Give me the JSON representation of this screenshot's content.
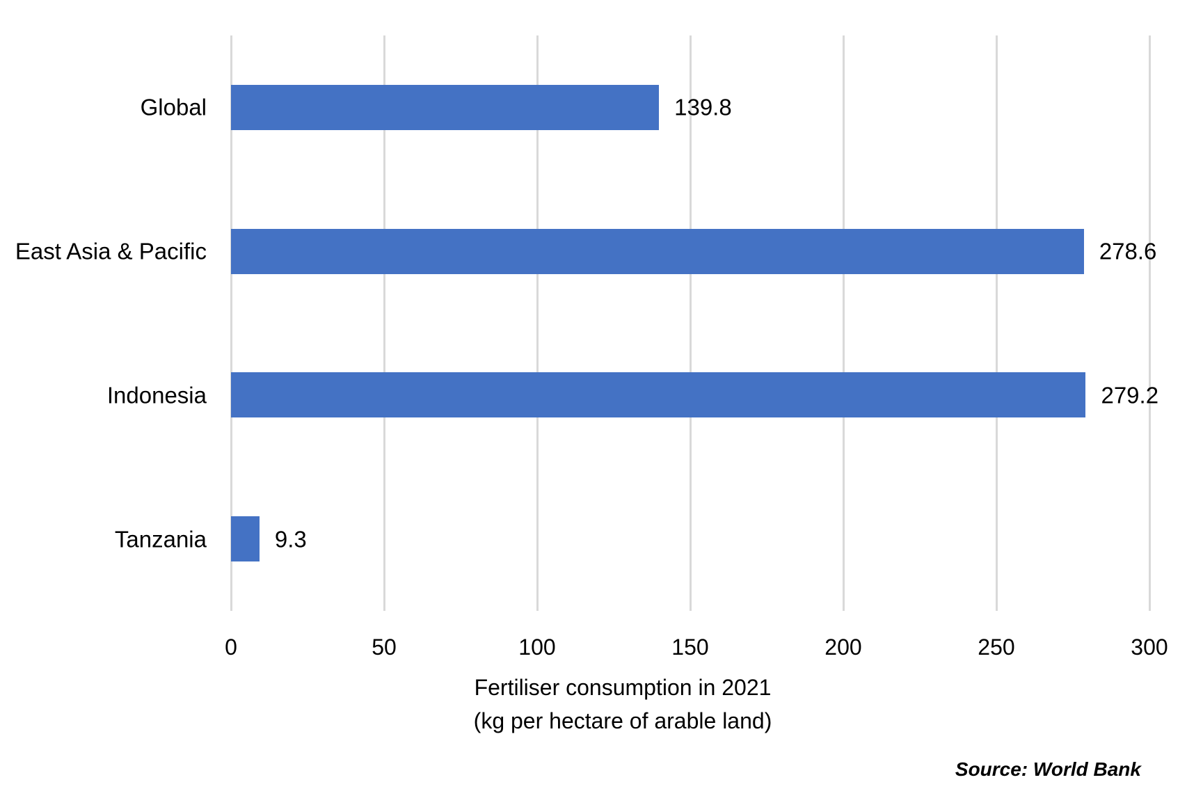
{
  "chart_data": {
    "type": "bar",
    "orientation": "horizontal",
    "categories": [
      "Global",
      "East Asia & Pacific",
      "Indonesia",
      "Tanzania"
    ],
    "values": [
      139.8,
      278.6,
      279.2,
      9.3
    ],
    "value_labels": [
      "139.8",
      "278.6",
      "279.2",
      "9.3"
    ],
    "xlim": [
      0,
      300
    ],
    "xticks": [
      0,
      50,
      100,
      150,
      200,
      250,
      300
    ],
    "xlabel_line1": "Fertiliser consumption in 2021",
    "xlabel_line2": "(kg per hectare of arable land)",
    "grid": "vertical",
    "legend": "none",
    "bar_color": "#4472C4",
    "gridline_color": "#D9D9D9",
    "text_color": "#000000",
    "source_note": "Source: World Bank"
  }
}
